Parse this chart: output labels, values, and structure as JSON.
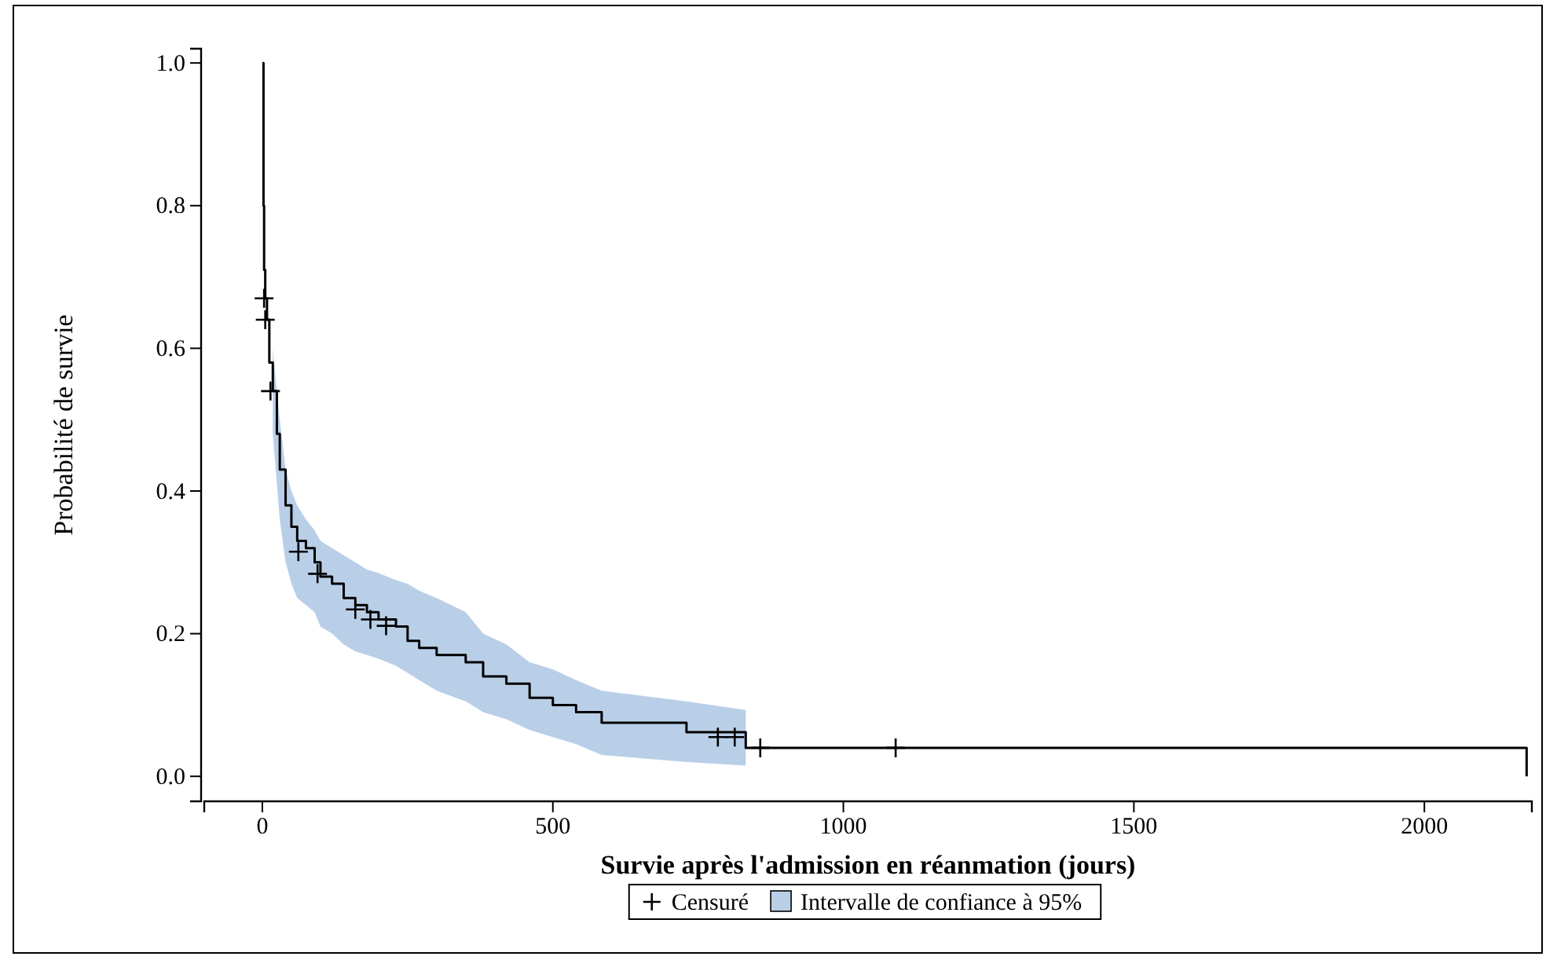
{
  "chart_data": {
    "type": "step",
    "xlabel": "Survie après l'admission en réanmation (jours)",
    "ylabel": "Probabilité de survie",
    "xlim": [
      -100,
      2185
    ],
    "ylim": [
      -0.035,
      1.02
    ],
    "xticks": [
      0,
      500,
      1000,
      1500,
      2000
    ],
    "yticks": [
      {
        "value": 0,
        "label": "0.0"
      },
      {
        "value": 0.2,
        "label": "0.2"
      },
      {
        "value": 0.4,
        "label": "0.4"
      },
      {
        "value": 0.6,
        "label": "0.6"
      },
      {
        "value": 0.8,
        "label": "0.8"
      },
      {
        "value": 1,
        "label": "1.0"
      }
    ],
    "grid": false,
    "legend": "bottom",
    "series": [
      {
        "type": "scatter",
        "name": "Censuré",
        "color": "#000000",
        "marker": "cross",
        "x": [
          3,
          5,
          14,
          62,
          95,
          160,
          186,
          213,
          784,
          813,
          857,
          1090
        ],
        "values": [
          0.67,
          0.64,
          0.54,
          0.315,
          0.284,
          0.234,
          0.22,
          0.211,
          0.055,
          0.055,
          0.04,
          0.04
        ]
      },
      {
        "name": "Intervalle de confiance à 95%",
        "color": "#000000",
        "x": [
          0,
          2,
          3,
          5,
          8,
          12,
          18,
          25,
          30,
          40,
          50,
          60,
          75,
          90,
          100,
          120,
          140,
          160,
          180,
          200,
          230,
          250,
          270,
          300,
          350,
          380,
          420,
          460,
          500,
          540,
          584,
          730,
          832,
          2176
        ],
        "values": [
          1.0,
          0.8,
          0.71,
          0.67,
          0.64,
          0.58,
          0.54,
          0.48,
          0.43,
          0.38,
          0.35,
          0.33,
          0.32,
          0.3,
          0.28,
          0.27,
          0.25,
          0.24,
          0.23,
          0.22,
          0.21,
          0.19,
          0.18,
          0.17,
          0.16,
          0.14,
          0.13,
          0.11,
          0.1,
          0.09,
          0.075,
          0.062,
          0.04,
          0.0
        ],
        "lower": [
          null,
          null,
          null,
          null,
          null,
          null,
          0.48,
          0.41,
          0.36,
          0.3,
          0.27,
          0.25,
          0.24,
          0.23,
          0.21,
          0.2,
          0.185,
          0.175,
          0.17,
          0.165,
          0.155,
          0.145,
          0.135,
          0.12,
          0.105,
          0.09,
          0.08,
          0.065,
          0.055,
          0.045,
          0.03,
          0.02,
          0.015,
          null
        ],
        "upper": [
          null,
          null,
          null,
          null,
          null,
          null,
          0.6,
          0.54,
          0.5,
          0.43,
          0.4,
          0.38,
          0.36,
          0.345,
          0.33,
          0.32,
          0.31,
          0.3,
          0.29,
          0.285,
          0.275,
          0.27,
          0.26,
          0.25,
          0.23,
          0.2,
          0.185,
          0.16,
          0.15,
          0.135,
          0.12,
          0.105,
          0.093,
          null
        ]
      }
    ]
  }
}
